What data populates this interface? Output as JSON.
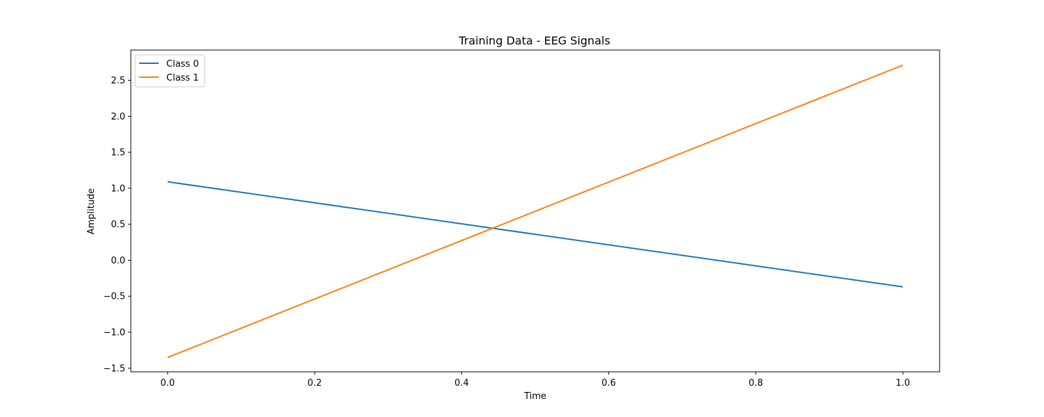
{
  "chart_data": {
    "type": "line",
    "title": "Training Data - EEG Signals",
    "xlabel": "Time",
    "ylabel": "Amplitude",
    "xlim": [
      -0.05,
      1.05
    ],
    "ylim": [
      -1.55,
      2.92
    ],
    "x_ticks": [
      0.0,
      0.2,
      0.4,
      0.6,
      0.8,
      1.0
    ],
    "x_tick_labels": [
      "0.0",
      "0.2",
      "0.4",
      "0.6",
      "0.8",
      "1.0"
    ],
    "y_ticks": [
      -1.5,
      -1.0,
      -0.5,
      0.0,
      0.5,
      1.0,
      1.5,
      2.0,
      2.5
    ],
    "y_tick_labels": [
      "−1.5",
      "−1.0",
      "−0.5",
      "0.0",
      "0.5",
      "1.0",
      "1.5",
      "2.0",
      "2.5"
    ],
    "grid": false,
    "legend_position": "top-left",
    "series": [
      {
        "name": "Class 0",
        "color": "#1f77b4",
        "x": [
          0.0,
          1.0
        ],
        "y": [
          1.09,
          -0.37
        ]
      },
      {
        "name": "Class 1",
        "color": "#ff7f0e",
        "x": [
          0.0,
          1.0
        ],
        "y": [
          -1.35,
          2.71
        ]
      }
    ]
  }
}
